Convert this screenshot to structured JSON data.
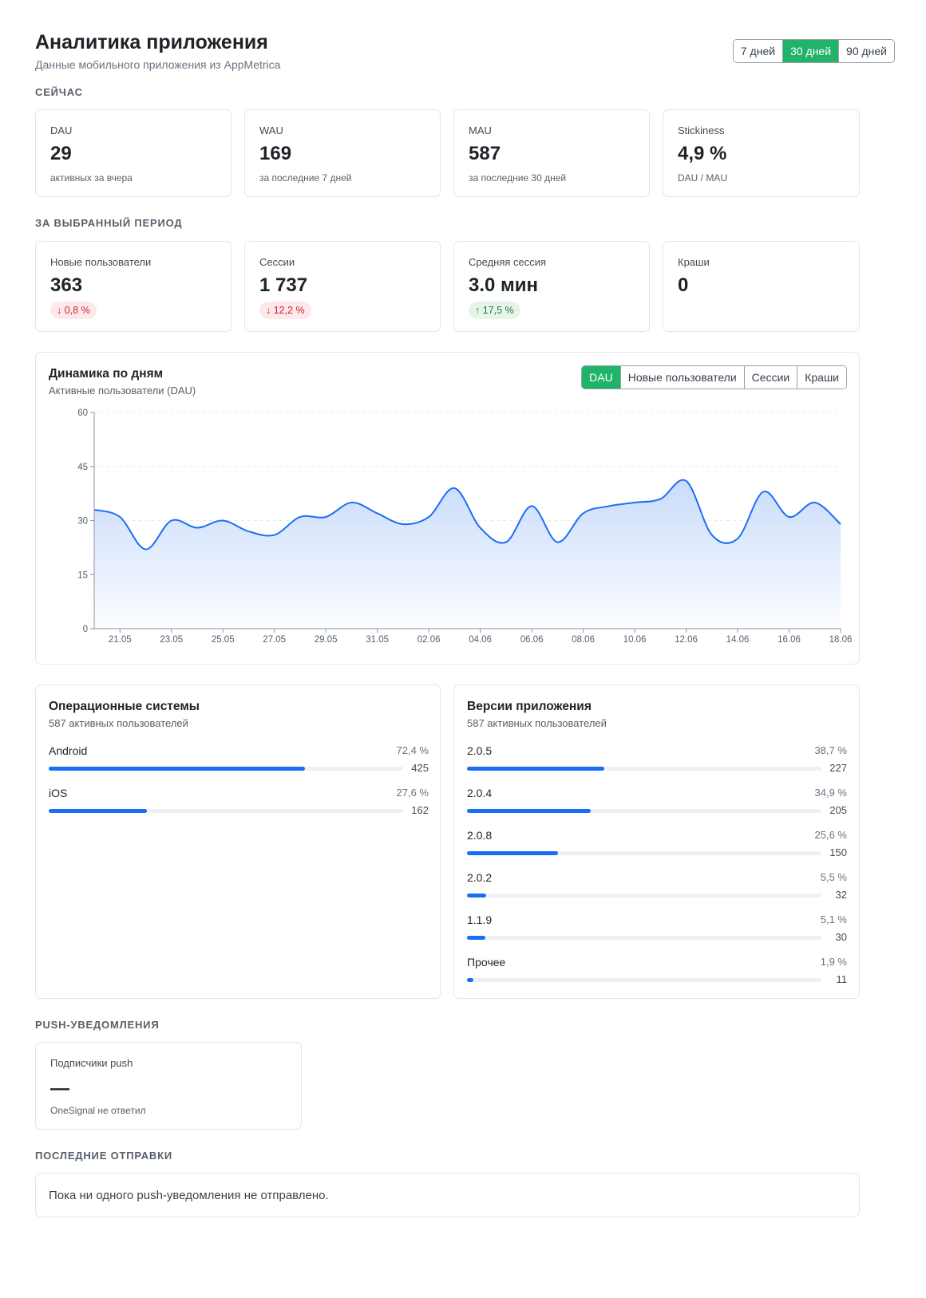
{
  "header": {
    "title": "Аналитика приложения",
    "subtitle": "Данные мобильного приложения из AppMetrica",
    "periods": [
      "7 дней",
      "30 дней",
      "90 дней"
    ],
    "active_period": "30 дней"
  },
  "now": {
    "section_label": "СЕЙЧАС",
    "cards": [
      {
        "label": "DAU",
        "value": "29",
        "note": "активных за вчера"
      },
      {
        "label": "WAU",
        "value": "169",
        "note": "за последние 7 дней"
      },
      {
        "label": "MAU",
        "value": "587",
        "note": "за последние 30 дней"
      },
      {
        "label": "Stickiness",
        "value": "4,9 %",
        "note": "DAU / MAU"
      }
    ]
  },
  "period": {
    "section_label": "ЗА ВЫБРАННЫЙ ПЕРИОД",
    "cards": [
      {
        "label": "Новые пользователи",
        "value": "363",
        "change": "0,8 %",
        "direction": "down",
        "arrow": "↓"
      },
      {
        "label": "Сессии",
        "value": "1 737",
        "change": "12,2 %",
        "direction": "down",
        "arrow": "↓"
      },
      {
        "label": "Средняя сессия",
        "value": "3.0 мин",
        "change": "17,5 %",
        "direction": "up",
        "arrow": "↑"
      },
      {
        "label": "Краши",
        "value": "0"
      }
    ]
  },
  "dynamics": {
    "title": "Динамика по дням",
    "subtitle": "Активные пользователи (DAU)",
    "tabs": [
      "DAU",
      "Новые пользователи",
      "Сессии",
      "Краши"
    ],
    "active_tab": "DAU",
    "colors": {
      "line": "#1b6ef3",
      "fill_top": "#c9dcfb",
      "active_tab": "#21b36a"
    }
  },
  "chart_data": {
    "type": "area",
    "title": "Динамика по дням",
    "subtitle": "Активные пользователи (DAU)",
    "ylim": [
      0,
      60
    ],
    "y_ticks": [
      0,
      15,
      30,
      45,
      60
    ],
    "grid": true,
    "x": [
      "20.05",
      "21.05",
      "22.05",
      "23.05",
      "24.05",
      "25.05",
      "26.05",
      "27.05",
      "28.05",
      "29.05",
      "30.05",
      "31.05",
      "01.06",
      "02.06",
      "03.06",
      "04.06",
      "05.06",
      "06.06",
      "07.06",
      "08.06",
      "09.06",
      "10.06",
      "11.06",
      "12.06",
      "13.06",
      "14.06",
      "15.06",
      "16.06",
      "17.06",
      "18.06"
    ],
    "x_tick_labels": [
      "21.05",
      "23.05",
      "25.05",
      "27.05",
      "29.05",
      "31.05",
      "02.06",
      "04.06",
      "06.06",
      "08.06",
      "10.06",
      "12.06",
      "14.06",
      "16.06",
      "18.06"
    ],
    "series": [
      {
        "values": [
          33,
          31,
          22,
          30,
          28,
          30,
          27,
          26,
          31,
          31,
          35,
          32,
          29,
          31,
          39,
          28,
          24,
          34,
          24,
          32,
          34,
          35,
          36,
          41,
          26,
          25,
          38,
          31,
          35,
          29
        ]
      }
    ]
  },
  "os": {
    "title": "Операционные системы",
    "subtitle": "587 активных пользователей",
    "items": [
      {
        "name": "Android",
        "pct": "72,4 %",
        "count": "425",
        "share": 72.4
      },
      {
        "name": "iOS",
        "pct": "27,6 %",
        "count": "162",
        "share": 27.6
      }
    ]
  },
  "versions": {
    "title": "Версии приложения",
    "subtitle": "587 активных пользователей",
    "items": [
      {
        "name": "2.0.5",
        "pct": "38,7 %",
        "count": "227",
        "share": 38.7
      },
      {
        "name": "2.0.4",
        "pct": "34,9 %",
        "count": "205",
        "share": 34.9
      },
      {
        "name": "2.0.8",
        "pct": "25,6 %",
        "count": "150",
        "share": 25.6
      },
      {
        "name": "2.0.2",
        "pct": "5,5 %",
        "count": "32",
        "share": 5.5
      },
      {
        "name": "1.1.9",
        "pct": "5,1 %",
        "count": "30",
        "share": 5.1
      },
      {
        "name": "Прочее",
        "pct": "1,9 %",
        "count": "11",
        "share": 1.9
      }
    ]
  },
  "push": {
    "section_label": "PUSH-УВЕДОМЛЕНИЯ",
    "card": {
      "label": "Подписчики push",
      "value": "—",
      "note": "OneSignal не ответил"
    }
  },
  "recent": {
    "section_label": "ПОСЛЕДНИЕ ОТПРАВКИ",
    "empty_text": "Пока ни одного push-уведомления не отправлено."
  }
}
